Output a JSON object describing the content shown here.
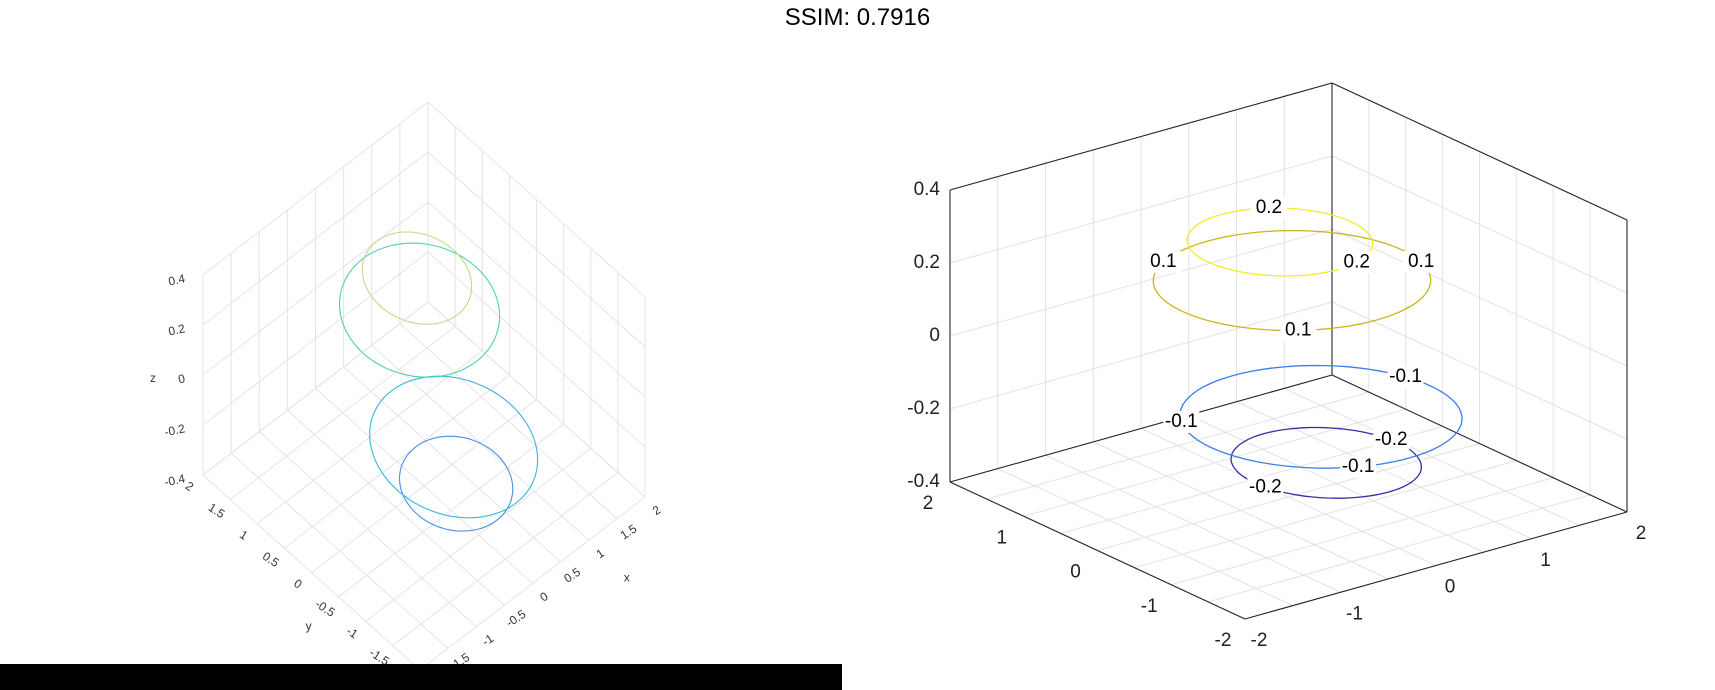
{
  "figure": {
    "title": "SSIM: 0.7916"
  },
  "chart_data": [
    {
      "type": "contour3",
      "panel": "left",
      "grid": true,
      "axes_box": false,
      "xlabel": "x",
      "ylabel": "y",
      "zlabel": "z",
      "xlim": [
        -2,
        2
      ],
      "ylim": [
        -2,
        2
      ],
      "zlim": [
        -0.4,
        0.4
      ],
      "x_ticks": [
        "-1.5",
        "-1",
        "-0.5",
        "0",
        "0.5",
        "1",
        "1.5",
        "2"
      ],
      "y_ticks": [
        "-1.5",
        "-1",
        "-0.5",
        "0",
        "0.5",
        "1",
        "1.5",
        "2"
      ],
      "z_ticks": [
        "-0.4",
        "-0.2",
        "0",
        "0.2",
        "0.4"
      ],
      "levels": [
        {
          "level": -0.2,
          "color": "#4a8fe0",
          "cx": -0.2,
          "cy": -0.8,
          "rx": 0.7,
          "ry": 0.75
        },
        {
          "level": -0.1,
          "color": "#38b4e6",
          "cx": -0.1,
          "cy": -0.65,
          "rx": 1.0,
          "ry": 1.15
        },
        {
          "level": 0.1,
          "color": "#4fd2a8",
          "cx": 0.5,
          "cy": 0.6,
          "rx": 1.0,
          "ry": 1.05
        },
        {
          "level": 0.2,
          "color": "#c4d88a",
          "cx": 0.55,
          "cy": 0.7,
          "rx": 0.65,
          "ry": 0.75
        }
      ]
    },
    {
      "type": "contour3",
      "panel": "right",
      "grid": true,
      "axes_box": true,
      "xlim": [
        -2,
        2
      ],
      "ylim": [
        -2,
        2
      ],
      "zlim": [
        -0.4,
        0.4
      ],
      "x_ticks": [
        "-2",
        "-1",
        "0",
        "1",
        "2"
      ],
      "y_ticks": [
        "-2",
        "-1",
        "0",
        "1",
        "2"
      ],
      "z_ticks": [
        "-0.4",
        "-0.2",
        "0",
        "0.2",
        "0.4"
      ],
      "levels": [
        {
          "level": -0.2,
          "color": "#3b2ba8",
          "cx": -0.3,
          "cy": -0.9,
          "rx": 0.75,
          "ry": 0.85
        },
        {
          "level": -0.1,
          "color": "#3b7dea",
          "cx": -0.2,
          "cy": -0.7,
          "rx": 1.15,
          "ry": 1.2
        },
        {
          "level": 0.1,
          "color": "#c9b51b",
          "cx": 0.5,
          "cy": 0.6,
          "rx": 1.15,
          "ry": 1.15
        },
        {
          "level": 0.2,
          "color": "#f2ec2a",
          "cx": 0.45,
          "cy": 0.7,
          "rx": 0.75,
          "ry": 0.8
        }
      ],
      "contour_labels": [
        {
          "text": "0.2",
          "level": 0.2,
          "t": 1.0
        },
        {
          "text": "0.1",
          "level": 0.1,
          "t": 2.1
        },
        {
          "text": "0.2",
          "level": 0.2,
          "t": 5.0
        },
        {
          "text": "0.1",
          "level": 0.1,
          "t": 6.0
        },
        {
          "text": "0.1",
          "level": 0.1,
          "t": 4.1
        },
        {
          "text": "-0.1",
          "level": -0.1,
          "t": 2.6
        },
        {
          "text": "-0.1",
          "level": -0.1,
          "t": 0.25
        },
        {
          "text": "-0.2",
          "level": -0.2,
          "t": 0.1
        },
        {
          "text": "-0.2",
          "level": -0.2,
          "t": 3.3
        },
        {
          "text": "-0.1",
          "level": -0.1,
          "t": 4.3
        }
      ]
    }
  ]
}
